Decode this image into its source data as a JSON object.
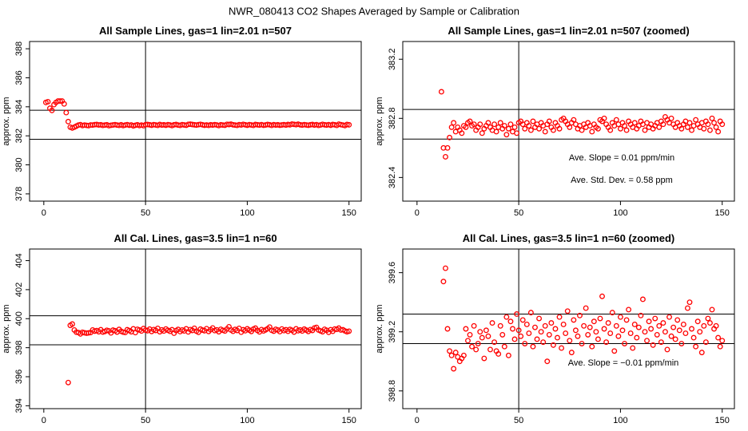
{
  "title": "NWR_080413  CO2 Shapes Averaged by Sample or Calibration",
  "chart_data": [
    {
      "type": "scatter",
      "title": "All Sample Lines, gas=1 lin=2.01 n=507",
      "y_label": "approx. ppm",
      "color": "#ff0000",
      "xlim": [
        -7,
        156
      ],
      "ylim": [
        377.5,
        388.5
      ],
      "xticks": [
        0,
        50,
        100,
        150
      ],
      "yticks": [
        378,
        380,
        382,
        384,
        386,
        388
      ],
      "hlines": [
        383.76,
        381.76
      ],
      "vlines": [
        50
      ],
      "annotations": [],
      "x": [
        1,
        2,
        3,
        4,
        5,
        6,
        7,
        8,
        9,
        10,
        11,
        12,
        13,
        14,
        15,
        16,
        17,
        18,
        19,
        20,
        21,
        22,
        23,
        24,
        25,
        26,
        27,
        28,
        29,
        30,
        31,
        32,
        33,
        34,
        35,
        36,
        37,
        38,
        39,
        40,
        41,
        42,
        43,
        44,
        45,
        46,
        47,
        48,
        49,
        50,
        51,
        52,
        53,
        54,
        55,
        56,
        57,
        58,
        59,
        60,
        61,
        62,
        63,
        64,
        65,
        66,
        67,
        68,
        69,
        70,
        71,
        72,
        73,
        74,
        75,
        76,
        77,
        78,
        79,
        80,
        81,
        82,
        83,
        84,
        85,
        86,
        87,
        88,
        89,
        90,
        91,
        92,
        93,
        94,
        95,
        96,
        97,
        98,
        99,
        100,
        101,
        102,
        103,
        104,
        105,
        106,
        107,
        108,
        109,
        110,
        111,
        112,
        113,
        114,
        115,
        116,
        117,
        118,
        119,
        120,
        121,
        122,
        123,
        124,
        125,
        126,
        127,
        128,
        129,
        130,
        131,
        132,
        133,
        134,
        135,
        136,
        137,
        138,
        139,
        140,
        141,
        142,
        143,
        144,
        145,
        146,
        147,
        148,
        149,
        150
      ],
      "values": [
        384.3,
        384.35,
        383.9,
        383.75,
        384.15,
        384.3,
        384.4,
        384.4,
        384.4,
        384.2,
        383.6,
        382.98,
        382.6,
        382.54,
        382.6,
        382.67,
        382.74,
        382.77,
        382.71,
        382.74,
        382.72,
        382.7,
        382.75,
        382.74,
        382.77,
        382.78,
        382.75,
        382.76,
        382.72,
        382.74,
        382.76,
        382.7,
        382.73,
        382.75,
        382.77,
        382.74,
        382.72,
        382.76,
        382.71,
        382.74,
        382.77,
        382.73,
        382.75,
        382.69,
        382.73,
        382.76,
        382.71,
        382.74,
        382.7,
        382.77,
        382.78,
        382.76,
        382.73,
        382.77,
        382.75,
        382.72,
        382.78,
        382.74,
        382.76,
        382.73,
        382.77,
        382.75,
        382.71,
        382.76,
        382.78,
        382.74,
        382.72,
        382.77,
        382.75,
        382.73,
        382.79,
        382.8,
        382.78,
        382.76,
        382.74,
        382.77,
        382.79,
        382.76,
        382.73,
        382.75,
        382.72,
        382.76,
        382.74,
        382.77,
        382.75,
        382.71,
        382.76,
        382.74,
        382.73,
        382.79,
        382.78,
        382.8,
        382.76,
        382.74,
        382.72,
        382.77,
        382.75,
        382.79,
        382.76,
        382.73,
        382.77,
        382.75,
        382.72,
        382.78,
        382.76,
        382.74,
        382.77,
        382.73,
        382.75,
        382.78,
        382.76,
        382.72,
        382.77,
        382.74,
        382.76,
        382.73,
        382.75,
        382.77,
        382.74,
        382.78,
        382.76,
        382.81,
        382.79,
        382.77,
        382.8,
        382.76,
        382.74,
        382.77,
        382.75,
        382.73,
        382.76,
        382.78,
        382.74,
        382.77,
        382.72,
        382.75,
        382.79,
        382.76,
        382.74,
        382.77,
        382.73,
        382.78,
        382.76,
        382.72,
        382.8,
        382.77,
        382.74,
        382.71,
        382.78,
        382.76
      ]
    },
    {
      "type": "scatter",
      "title": "All Sample Lines, gas=1 lin=2.01 n=507 (zoomed)",
      "y_label": "approx. ppm",
      "color": "#ff0000",
      "xlim": [
        -7,
        156
      ],
      "ylim": [
        382.24,
        383.32
      ],
      "xticks": [
        0,
        50,
        100,
        150
      ],
      "yticks": [
        382.4,
        382.8,
        383.2
      ],
      "hlines": [
        382.86,
        382.66
      ],
      "vlines": [
        50
      ],
      "annotations": [
        "Ave. Slope =  0.01  ppm/min",
        "Ave. Std. Dev. =  0.58  ppm"
      ],
      "x": [
        12,
        13,
        14,
        15,
        16,
        17,
        18,
        19,
        20,
        21,
        22,
        23,
        24,
        25,
        26,
        27,
        28,
        29,
        30,
        31,
        32,
        33,
        34,
        35,
        36,
        37,
        38,
        39,
        40,
        41,
        42,
        43,
        44,
        45,
        46,
        47,
        48,
        49,
        50,
        51,
        52,
        53,
        54,
        55,
        56,
        57,
        58,
        59,
        60,
        61,
        62,
        63,
        64,
        65,
        66,
        67,
        68,
        69,
        70,
        71,
        72,
        73,
        74,
        75,
        76,
        77,
        78,
        79,
        80,
        81,
        82,
        83,
        84,
        85,
        86,
        87,
        88,
        89,
        90,
        91,
        92,
        93,
        94,
        95,
        96,
        97,
        98,
        99,
        100,
        101,
        102,
        103,
        104,
        105,
        106,
        107,
        108,
        109,
        110,
        111,
        112,
        113,
        114,
        115,
        116,
        117,
        118,
        119,
        120,
        121,
        122,
        123,
        124,
        125,
        126,
        127,
        128,
        129,
        130,
        131,
        132,
        133,
        134,
        135,
        136,
        137,
        138,
        139,
        140,
        141,
        142,
        143,
        144,
        145,
        146,
        147,
        148,
        149,
        150
      ],
      "values": [
        382.98,
        382.6,
        382.54,
        382.6,
        382.67,
        382.74,
        382.77,
        382.71,
        382.74,
        382.72,
        382.7,
        382.75,
        382.74,
        382.77,
        382.78,
        382.75,
        382.76,
        382.72,
        382.74,
        382.76,
        382.7,
        382.73,
        382.75,
        382.77,
        382.74,
        382.72,
        382.76,
        382.71,
        382.74,
        382.77,
        382.73,
        382.75,
        382.69,
        382.73,
        382.76,
        382.71,
        382.74,
        382.7,
        382.77,
        382.78,
        382.76,
        382.73,
        382.77,
        382.75,
        382.72,
        382.78,
        382.74,
        382.76,
        382.73,
        382.77,
        382.75,
        382.71,
        382.76,
        382.78,
        382.74,
        382.72,
        382.77,
        382.75,
        382.73,
        382.79,
        382.8,
        382.78,
        382.76,
        382.74,
        382.77,
        382.79,
        382.76,
        382.73,
        382.75,
        382.72,
        382.76,
        382.74,
        382.77,
        382.75,
        382.71,
        382.76,
        382.74,
        382.73,
        382.79,
        382.78,
        382.8,
        382.76,
        382.74,
        382.72,
        382.77,
        382.75,
        382.79,
        382.76,
        382.73,
        382.77,
        382.75,
        382.72,
        382.78,
        382.76,
        382.74,
        382.77,
        382.73,
        382.75,
        382.78,
        382.76,
        382.72,
        382.77,
        382.74,
        382.76,
        382.73,
        382.75,
        382.77,
        382.74,
        382.78,
        382.76,
        382.81,
        382.79,
        382.77,
        382.8,
        382.76,
        382.74,
        382.77,
        382.75,
        382.73,
        382.76,
        382.78,
        382.74,
        382.77,
        382.72,
        382.75,
        382.79,
        382.76,
        382.74,
        382.77,
        382.73,
        382.78,
        382.76,
        382.72,
        382.8,
        382.77,
        382.74,
        382.71,
        382.78,
        382.76
      ]
    },
    {
      "type": "scatter",
      "title": "All Cal. Lines, gas=3.5 lin=1 n=60",
      "y_label": "approx. ppm",
      "color": "#ff0000",
      "xlim": [
        -7,
        156
      ],
      "ylim": [
        393.8,
        404.8
      ],
      "xticks": [
        0,
        50,
        100,
        150
      ],
      "yticks": [
        394,
        396,
        398,
        400,
        402,
        404
      ],
      "hlines": [
        400.2,
        398.2
      ],
      "vlines": [
        50
      ],
      "annotations": [],
      "x": [
        12,
        13,
        14,
        15,
        16,
        17,
        18,
        19,
        20,
        21,
        22,
        23,
        24,
        25,
        26,
        27,
        28,
        29,
        30,
        31,
        32,
        33,
        34,
        35,
        36,
        37,
        38,
        39,
        40,
        41,
        42,
        43,
        44,
        45,
        46,
        47,
        48,
        49,
        50,
        51,
        52,
        53,
        54,
        55,
        56,
        57,
        58,
        59,
        60,
        61,
        62,
        63,
        64,
        65,
        66,
        67,
        68,
        69,
        70,
        71,
        72,
        73,
        74,
        75,
        76,
        77,
        78,
        79,
        80,
        81,
        82,
        83,
        84,
        85,
        86,
        87,
        88,
        89,
        90,
        91,
        92,
        93,
        94,
        95,
        96,
        97,
        98,
        99,
        100,
        101,
        102,
        103,
        104,
        105,
        106,
        107,
        108,
        109,
        110,
        111,
        112,
        113,
        114,
        115,
        116,
        117,
        118,
        119,
        120,
        121,
        122,
        123,
        124,
        125,
        126,
        127,
        128,
        129,
        130,
        131,
        132,
        133,
        134,
        135,
        136,
        137,
        138,
        139,
        140,
        141,
        142,
        143,
        144,
        145,
        146,
        147,
        148,
        149,
        150
      ],
      "values": [
        395.6,
        399.54,
        399.63,
        399.22,
        399.07,
        399.04,
        398.95,
        399.06,
        399.03,
        399.0,
        399.02,
        399.04,
        399.22,
        399.14,
        399.18,
        399.1,
        399.24,
        399.08,
        399.12,
        399.2,
        399.16,
        399.02,
        399.21,
        399.17,
        399.08,
        399.26,
        399.13,
        399.07,
        399.05,
        399.24,
        399.18,
        399.1,
        399.3,
        399.04,
        399.27,
        399.22,
        399.15,
        399.32,
        399.21,
        399.17,
        399.28,
        399.12,
        399.25,
        399.19,
        399.33,
        399.1,
        399.23,
        399.15,
        399.29,
        399.2,
        399.13,
        399.24,
        399.0,
        399.18,
        399.26,
        399.11,
        399.22,
        399.16,
        399.3,
        399.09,
        399.25,
        399.19,
        399.34,
        399.14,
        399.06,
        399.28,
        399.21,
        399.17,
        399.31,
        399.12,
        399.24,
        399.36,
        399.18,
        399.23,
        399.1,
        399.27,
        399.2,
        399.15,
        399.29,
        399.44,
        399.22,
        399.13,
        399.26,
        399.19,
        399.33,
        399.07,
        399.24,
        399.17,
        399.3,
        399.21,
        399.12,
        399.28,
        399.35,
        399.19,
        399.09,
        399.25,
        399.16,
        399.23,
        399.31,
        399.42,
        399.2,
        399.14,
        399.27,
        399.22,
        399.11,
        399.29,
        399.18,
        399.24,
        399.13,
        399.26,
        399.2,
        399.08,
        399.3,
        399.17,
        399.23,
        399.15,
        399.28,
        399.21,
        399.12,
        399.25,
        399.19,
        399.36,
        399.4,
        399.22,
        399.16,
        399.1,
        399.27,
        399.2,
        399.06,
        399.24,
        399.13,
        399.29,
        399.26,
        399.35,
        399.22,
        399.24,
        399.16,
        399.1,
        399.14
      ]
    },
    {
      "type": "scatter",
      "title": "All Cal. Lines, gas=3.5 lin=1 n=60 (zoomed)",
      "y_label": "approx. ppm",
      "color": "#ff0000",
      "xlim": [
        -7,
        156
      ],
      "ylim": [
        398.68,
        399.76
      ],
      "xticks": [
        0,
        50,
        100,
        150
      ],
      "yticks": [
        398.8,
        399.2,
        399.6
      ],
      "hlines": [
        399.32,
        399.12
      ],
      "vlines": [
        50
      ],
      "annotations": [
        "Ave. Slope =  −0.01  ppm/min"
      ],
      "x": [
        13,
        14,
        15,
        16,
        17,
        18,
        19,
        20,
        21,
        22,
        23,
        24,
        25,
        26,
        27,
        28,
        29,
        30,
        31,
        32,
        33,
        34,
        35,
        36,
        37,
        38,
        39,
        40,
        41,
        42,
        43,
        44,
        45,
        46,
        47,
        48,
        49,
        50,
        51,
        52,
        53,
        54,
        55,
        56,
        57,
        58,
        59,
        60,
        61,
        62,
        63,
        64,
        65,
        66,
        67,
        68,
        69,
        70,
        71,
        72,
        73,
        74,
        75,
        76,
        77,
        78,
        79,
        80,
        81,
        82,
        83,
        84,
        85,
        86,
        87,
        88,
        89,
        90,
        91,
        92,
        93,
        94,
        95,
        96,
        97,
        98,
        99,
        100,
        101,
        102,
        103,
        104,
        105,
        106,
        107,
        108,
        109,
        110,
        111,
        112,
        113,
        114,
        115,
        116,
        117,
        118,
        119,
        120,
        121,
        122,
        123,
        124,
        125,
        126,
        127,
        128,
        129,
        130,
        131,
        132,
        133,
        134,
        135,
        136,
        137,
        138,
        139,
        140,
        141,
        142,
        143,
        144,
        145,
        146,
        147,
        148,
        149,
        150
      ],
      "values": [
        399.54,
        399.63,
        399.22,
        399.07,
        399.04,
        398.95,
        399.06,
        399.03,
        399.0,
        399.02,
        399.04,
        399.22,
        399.14,
        399.18,
        399.1,
        399.24,
        399.08,
        399.12,
        399.2,
        399.16,
        399.02,
        399.21,
        399.17,
        399.08,
        399.26,
        399.13,
        399.07,
        399.05,
        399.24,
        399.18,
        399.1,
        399.3,
        399.04,
        399.27,
        399.22,
        399.15,
        399.32,
        399.21,
        399.17,
        399.28,
        399.12,
        399.25,
        399.19,
        399.33,
        399.1,
        399.23,
        399.15,
        399.29,
        399.2,
        399.13,
        399.24,
        399.0,
        399.18,
        399.26,
        399.11,
        399.22,
        399.16,
        399.3,
        399.09,
        399.25,
        399.19,
        399.34,
        399.14,
        399.06,
        399.28,
        399.21,
        399.17,
        399.31,
        399.12,
        399.24,
        399.36,
        399.18,
        399.23,
        399.1,
        399.27,
        399.2,
        399.15,
        399.29,
        399.44,
        399.22,
        399.13,
        399.26,
        399.19,
        399.33,
        399.07,
        399.24,
        399.17,
        399.3,
        399.21,
        399.12,
        399.28,
        399.35,
        399.19,
        399.09,
        399.25,
        399.16,
        399.23,
        399.31,
        399.42,
        399.2,
        399.14,
        399.27,
        399.22,
        399.11,
        399.29,
        399.18,
        399.24,
        399.13,
        399.26,
        399.2,
        399.08,
        399.3,
        399.17,
        399.23,
        399.15,
        399.28,
        399.21,
        399.12,
        399.25,
        399.19,
        399.36,
        399.4,
        399.22,
        399.16,
        399.1,
        399.27,
        399.2,
        399.06,
        399.24,
        399.13,
        399.29,
        399.26,
        399.35,
        399.22,
        399.24,
        399.16,
        399.1,
        399.14
      ]
    }
  ]
}
